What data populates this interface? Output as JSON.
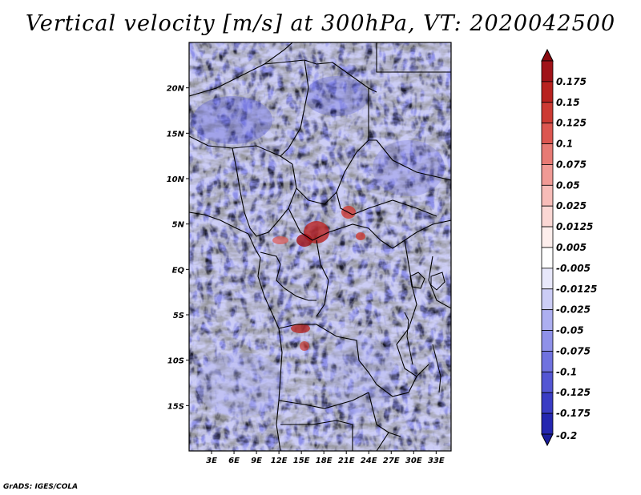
{
  "title": "Vertical velocity [m/s] at 300hPa, VT: 2020042500",
  "credit": "GrADS: IGES/COLA",
  "map": {
    "lon_range": [
      0,
      35
    ],
    "lat_range": [
      -20,
      25
    ],
    "lat_ticks": [
      {
        "value": 20,
        "label": "20N"
      },
      {
        "value": 15,
        "label": "15N"
      },
      {
        "value": 10,
        "label": "10N"
      },
      {
        "value": 5,
        "label": "5N"
      },
      {
        "value": 0,
        "label": "EQ"
      },
      {
        "value": -5,
        "label": "5S"
      },
      {
        "value": -10,
        "label": "10S"
      },
      {
        "value": -15,
        "label": "15S"
      }
    ],
    "lon_ticks": [
      {
        "value": 3,
        "label": "3E"
      },
      {
        "value": 6,
        "label": "6E"
      },
      {
        "value": 9,
        "label": "9E"
      },
      {
        "value": 12,
        "label": "12E"
      },
      {
        "value": 15,
        "label": "15E"
      },
      {
        "value": 18,
        "label": "18E"
      },
      {
        "value": 21,
        "label": "21E"
      },
      {
        "value": 24,
        "label": "24E"
      },
      {
        "value": 27,
        "label": "27E"
      },
      {
        "value": 30,
        "label": "30E"
      },
      {
        "value": 33,
        "label": "33E"
      }
    ]
  },
  "colorbar": {
    "levels": [
      {
        "label": "0.175",
        "color": "#a01218"
      },
      {
        "label": "0.15",
        "color": "#b8221f"
      },
      {
        "label": "0.125",
        "color": "#cc3a33"
      },
      {
        "label": "0.1",
        "color": "#dc5650"
      },
      {
        "label": "0.075",
        "color": "#e77a74"
      },
      {
        "label": "0.05",
        "color": "#f09a95"
      },
      {
        "label": "0.025",
        "color": "#f7bcb8"
      },
      {
        "label": "0.0125",
        "color": "#fbd7d4"
      },
      {
        "label": "0.005",
        "color": "#fdeeec"
      },
      {
        "label": "-0.005",
        "color": "#ffffff"
      },
      {
        "label": "-0.0125",
        "color": "#e8e8fb"
      },
      {
        "label": "-0.025",
        "color": "#cccdf6"
      },
      {
        "label": "-0.05",
        "color": "#adaff0"
      },
      {
        "label": "-0.075",
        "color": "#8f91e9"
      },
      {
        "label": "-0.1",
        "color": "#7072df"
      },
      {
        "label": "-0.125",
        "color": "#5456d3"
      },
      {
        "label": "-0.175",
        "color": "#3a3cc4"
      },
      {
        "label": "-0.2",
        "color": "#2426b0"
      }
    ],
    "top_color": "#8a0a10",
    "bottom_color": "#1a1c9c"
  }
}
